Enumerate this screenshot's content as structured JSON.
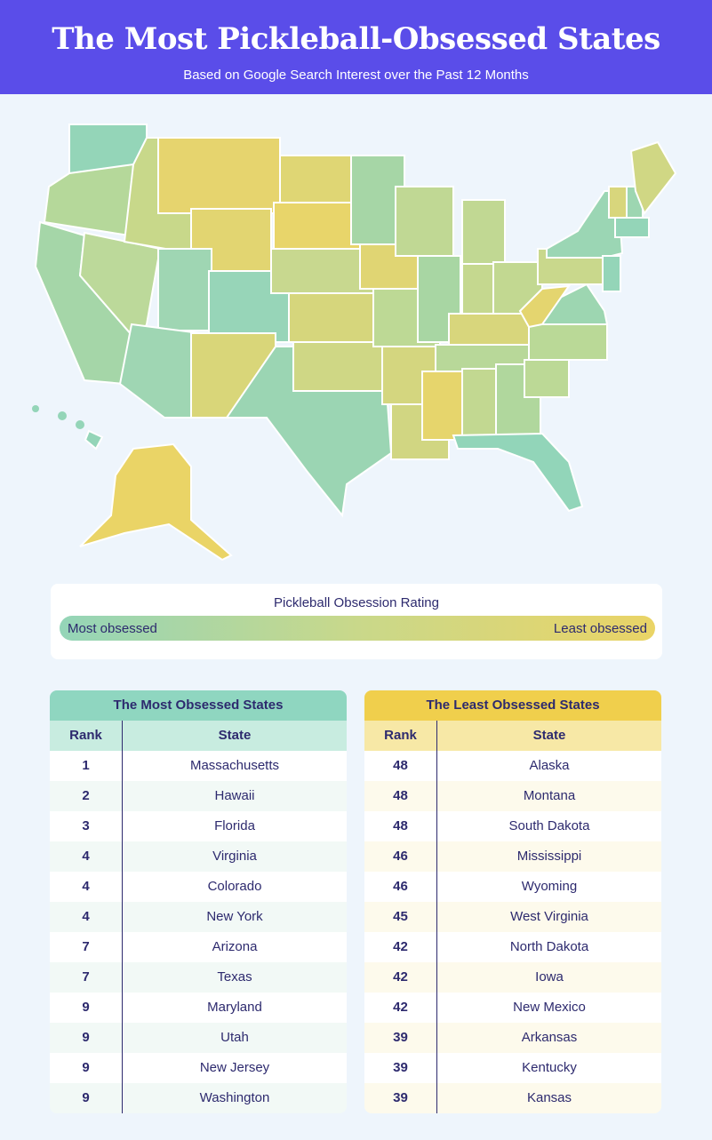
{
  "header": {
    "title": "The Most Pickleball-Obsessed States",
    "subtitle": "Based on Google Search Interest over the Past 12 Months"
  },
  "legend": {
    "title": "Pickleball Obsession Rating",
    "low_label": "Most obsessed",
    "high_label": "Least obsessed"
  },
  "tables": [
    {
      "title": "The Most Obsessed States",
      "columns": [
        "Rank",
        "State"
      ],
      "rows": [
        [
          1,
          "Massachusetts"
        ],
        [
          2,
          "Hawaii"
        ],
        [
          3,
          "Florida"
        ],
        [
          4,
          "Virginia"
        ],
        [
          4,
          "Colorado"
        ],
        [
          4,
          "New York"
        ],
        [
          7,
          "Arizona"
        ],
        [
          7,
          "Texas"
        ],
        [
          9,
          "Maryland"
        ],
        [
          9,
          "Utah"
        ],
        [
          9,
          "New Jersey"
        ],
        [
          9,
          "Washington"
        ]
      ]
    },
    {
      "title": "The Least Obsessed States",
      "columns": [
        "Rank",
        "State"
      ],
      "rows": [
        [
          48,
          "Alaska"
        ],
        [
          48,
          "Montana"
        ],
        [
          48,
          "South Dakota"
        ],
        [
          46,
          "Mississippi"
        ],
        [
          46,
          "Wyoming"
        ],
        [
          45,
          "West Virginia"
        ],
        [
          42,
          "North Dakota"
        ],
        [
          42,
          "Iowa"
        ],
        [
          42,
          "New Mexico"
        ],
        [
          39,
          "Arkansas"
        ],
        [
          39,
          "Kentucky"
        ],
        [
          39,
          "Kansas"
        ]
      ]
    }
  ]
}
